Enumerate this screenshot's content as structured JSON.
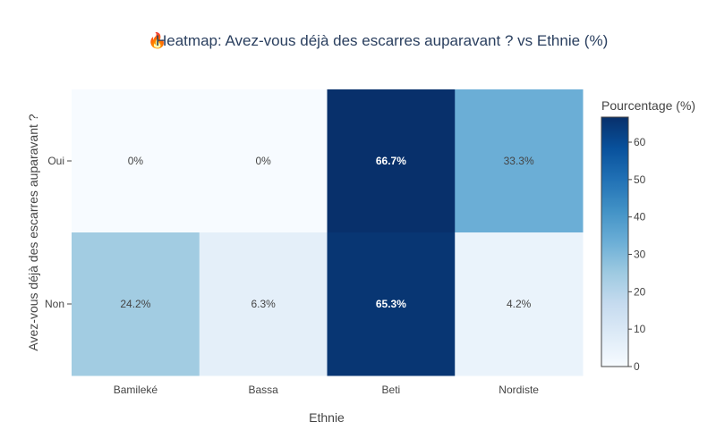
{
  "chart_data": {
    "type": "heatmap",
    "title_icon": "🔥",
    "title": "Heatmap: Avez-vous déjà des escarres auparavant ? vs Ethnie (%)",
    "xlabel": "Ethnie",
    "ylabel": "Avez-vous déjà des escarres auparavant ?",
    "x": [
      "Bamileké",
      "Bassa",
      "Beti",
      "Nordiste"
    ],
    "y": [
      "Oui",
      "Non"
    ],
    "z": [
      [
        0,
        0,
        66.7,
        33.3
      ],
      [
        24.2,
        6.3,
        65.3,
        4.2
      ]
    ],
    "cell_text": [
      [
        "0%",
        "0%",
        "66.7%",
        "33.3%"
      ],
      [
        "24.2%",
        "6.3%",
        "65.3%",
        "4.2%"
      ]
    ],
    "zmin": 0,
    "zmax": 66.7,
    "colorscale": "Blues",
    "colorscale_colors": [
      "#f7fbff",
      "#deebf7",
      "#c6dbef",
      "#9ecae1",
      "#6baed6",
      "#4292c6",
      "#2171b5",
      "#08519c",
      "#08306b"
    ],
    "colorbar": {
      "title": "Pourcentage (%)",
      "ticks": [
        0,
        10,
        20,
        30,
        40,
        50,
        60
      ]
    }
  }
}
